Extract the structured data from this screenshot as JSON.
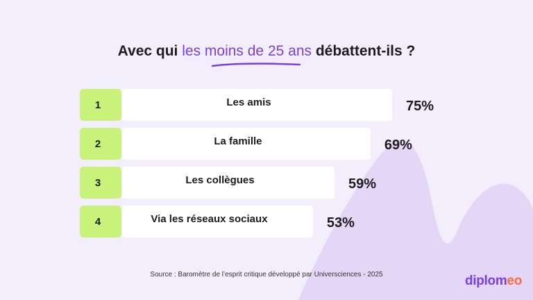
{
  "title": {
    "before": "Avec qui",
    "highlight": "les moins de 25 ans",
    "after": "débattent-ils ?"
  },
  "source": "Source : Baromètre de l’esprit critique développé par Universciences - 2025",
  "logo": {
    "main": "diplom",
    "accent": "eo"
  },
  "colors": {
    "background": "#f3eefb",
    "rank_box": "#c9f27a",
    "bar": "#ffffff",
    "accent": "#7b3fe0",
    "swoosh": "#e3d6f7"
  },
  "chart_data": {
    "type": "bar",
    "orientation": "horizontal",
    "ranks": [
      "1",
      "2",
      "3",
      "4"
    ],
    "categories": [
      "Les amis",
      "La famille",
      "Les collègues",
      "Via les réseaux sociaux"
    ],
    "values": [
      75,
      69,
      59,
      53
    ],
    "value_labels": [
      "75%",
      "69%",
      "59%",
      "53%"
    ],
    "unit": "%"
  }
}
